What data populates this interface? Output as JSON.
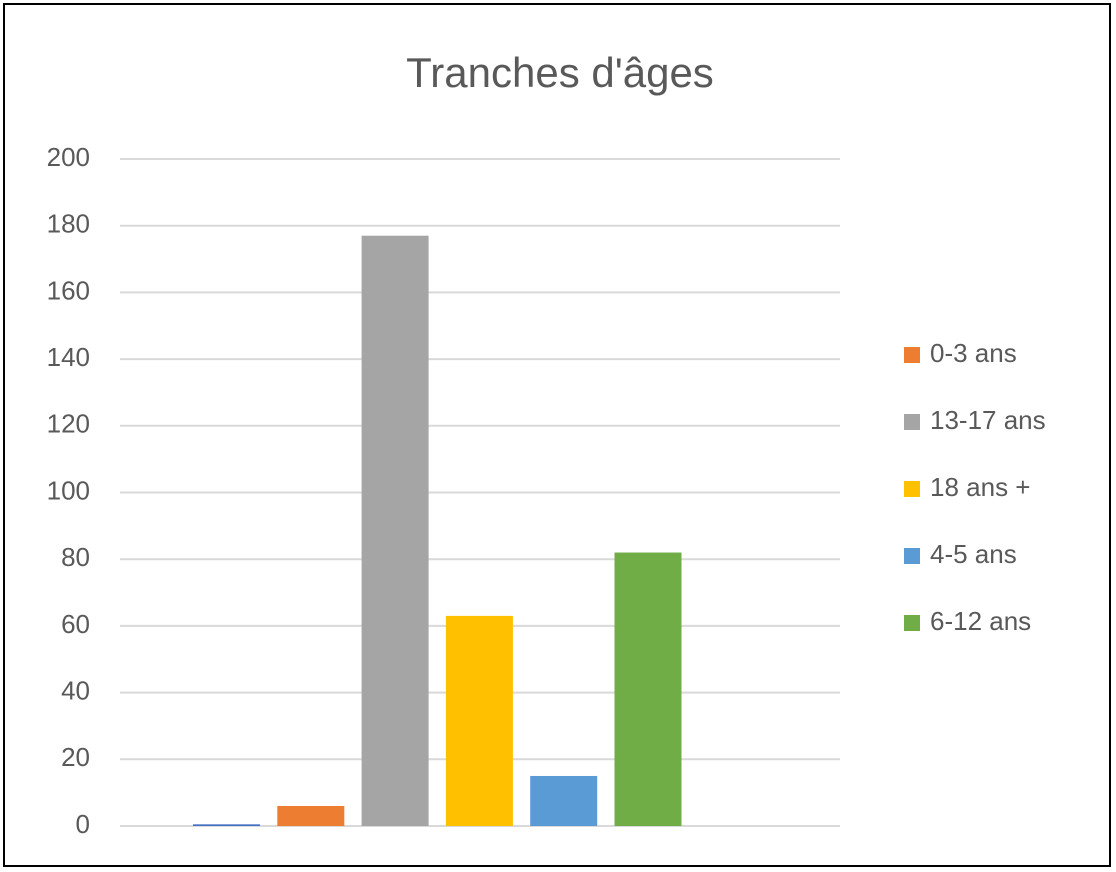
{
  "chart_data": {
    "type": "bar",
    "title": "Tranches d'âges",
    "series": [
      {
        "name": null,
        "color": "#4472c4",
        "values": [
          0.5
        ]
      },
      {
        "name": "0-3 ans",
        "color": "#ed7d31",
        "values": [
          6
        ]
      },
      {
        "name": "13-17 ans",
        "color": "#a5a5a5",
        "values": [
          177
        ]
      },
      {
        "name": "18 ans +",
        "color": "#ffc000",
        "values": [
          63
        ]
      },
      {
        "name": "4-5 ans",
        "color": "#5b9bd5",
        "values": [
          15
        ]
      },
      {
        "name": "6-12 ans",
        "color": "#70ad47",
        "values": [
          82
        ]
      }
    ],
    "ylim": [
      0,
      200
    ],
    "yticks": [
      0,
      20,
      40,
      60,
      80,
      100,
      120,
      140,
      160,
      180,
      200
    ],
    "grid": true,
    "legend": "right"
  }
}
